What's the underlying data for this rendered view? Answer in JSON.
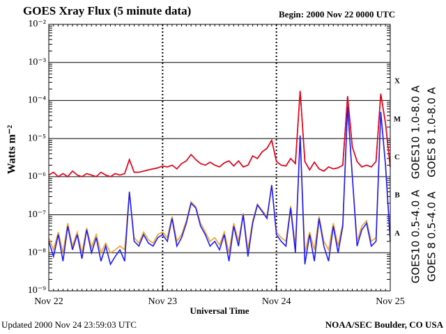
{
  "chart_data": {
    "type": "line",
    "title": "GOES Xray Flux (5 minute data)",
    "subtitle": "Begin:  2000 Nov 22  0000 UTC",
    "x_label": "Universal Time",
    "y_label": "Watts m⁻²",
    "footer_left": "Updated 2000 Nov 24 23:59:03 UTC",
    "footer_right": "NOAA/SEC Boulder, CO USA",
    "log_scale": true,
    "grid": true,
    "xlim": [
      0,
      72
    ],
    "xticks": [
      {
        "value": 0,
        "label": "Nov 22"
      },
      {
        "value": 24,
        "label": "Nov 23"
      },
      {
        "value": 48,
        "label": "Nov 24"
      },
      {
        "value": 72,
        "label": "Nov 25"
      }
    ],
    "ylim": [
      1e-09,
      0.01
    ],
    "yticks": [
      {
        "value": 1e-09,
        "label": "10⁻⁹"
      },
      {
        "value": 1e-08,
        "label": "10⁻⁸"
      },
      {
        "value": 1e-07,
        "label": "10⁻⁷"
      },
      {
        "value": 1e-06,
        "label": "10⁻⁶"
      },
      {
        "value": 1e-05,
        "label": "10⁻⁵"
      },
      {
        "value": 0.0001,
        "label": "10⁻⁴"
      },
      {
        "value": 0.001,
        "label": "10⁻³"
      },
      {
        "value": 0.01,
        "label": "10⁻²"
      }
    ],
    "flare_classes": [
      {
        "label": "A",
        "value": 1e-08
      },
      {
        "label": "B",
        "value": 1e-07
      },
      {
        "label": "C",
        "value": 1e-06
      },
      {
        "label": "M",
        "value": 1e-05
      },
      {
        "label": "X",
        "value": 0.0001
      }
    ],
    "x": [
      0,
      1,
      2,
      3,
      4,
      5,
      6,
      7,
      8,
      9,
      10,
      11,
      12,
      13,
      14,
      15,
      16,
      17,
      18,
      19,
      20,
      21,
      22,
      23,
      24,
      25,
      26,
      27,
      28,
      29,
      30,
      31,
      32,
      33,
      34,
      35,
      36,
      37,
      38,
      39,
      40,
      41,
      42,
      43,
      44,
      45,
      46,
      47,
      48,
      49,
      50,
      51,
      52,
      53,
      54,
      55,
      56,
      57,
      58,
      59,
      60,
      61,
      62,
      63,
      64,
      65,
      66,
      67,
      68,
      69,
      70,
      71,
      72
    ],
    "series": [
      {
        "name": "GOES10 1.0-8.0 A",
        "color": "#7f2fbf",
        "values": [
          1.1e-06,
          1.3e-06,
          1e-06,
          1.2e-06,
          1e-06,
          1.4e-06,
          1.1e-06,
          1e-06,
          1.2e-06,
          1.1e-06,
          1e-06,
          1.3e-06,
          1.1e-06,
          1e-06,
          1.2e-06,
          1.1e-06,
          1.2e-06,
          2.8e-06,
          1.3e-06,
          1.3e-06,
          1.4e-06,
          1.5e-06,
          1.6e-06,
          1.7e-06,
          1.9e-06,
          1.8e-06,
          2e-06,
          1.6e-06,
          2.2e-06,
          2.6e-06,
          3.8e-06,
          2.8e-06,
          2.2e-06,
          2e-06,
          2.4e-06,
          2e-06,
          1.8e-06,
          2.3e-06,
          2.6e-06,
          1.9e-06,
          2.6e-06,
          1.8e-06,
          2e-06,
          3.5e-06,
          3e-06,
          4.5e-06,
          5.5e-06,
          9e-06,
          2.5e-06,
          2e-06,
          1.9e-06,
          3e-06,
          2.2e-06,
          0.00018,
          2.5e-06,
          1.5e-06,
          2.4e-06,
          1.6e-06,
          1.4e-06,
          1.8e-06,
          1.6e-06,
          1.7e-06,
          2e-06,
          0.00013,
          6e-06,
          2.5e-06,
          1.8e-06,
          2e-06,
          1.8e-06,
          2.5e-06,
          0.00015,
          2.5e-05,
          1.8e-06
        ]
      },
      {
        "name": "GOES 8 1.0-8.0 A",
        "color": "#e8000b",
        "values": [
          1.1e-06,
          1.3e-06,
          1e-06,
          1.2e-06,
          1e-06,
          1.4e-06,
          1.1e-06,
          1e-06,
          1.2e-06,
          1.1e-06,
          1e-06,
          1.3e-06,
          1.1e-06,
          1e-06,
          1.2e-06,
          1.1e-06,
          1.2e-06,
          2.8e-06,
          1.3e-06,
          1.3e-06,
          1.4e-06,
          1.5e-06,
          1.6e-06,
          1.7e-06,
          1.9e-06,
          1.8e-06,
          2e-06,
          1.6e-06,
          2.2e-06,
          2.6e-06,
          3.8e-06,
          2.8e-06,
          2.2e-06,
          2e-06,
          2.4e-06,
          2e-06,
          1.8e-06,
          2.3e-06,
          2.6e-06,
          1.9e-06,
          2.6e-06,
          1.8e-06,
          2e-06,
          3.5e-06,
          3e-06,
          4.5e-06,
          5.5e-06,
          9e-06,
          2.5e-06,
          2e-06,
          1.9e-06,
          3e-06,
          2.2e-06,
          0.00018,
          2.5e-06,
          1.5e-06,
          2.4e-06,
          1.6e-06,
          1.4e-06,
          1.8e-06,
          1.6e-06,
          1.7e-06,
          2e-06,
          0.00013,
          6e-06,
          2.5e-06,
          1.8e-06,
          2e-06,
          1.8e-06,
          2.5e-06,
          0.00015,
          2.5e-05,
          1.8e-06
        ]
      },
      {
        "name": "GOES10 0.5-4.0 A",
        "color": "#f0a020",
        "values": [
          2.5e-08,
          1.2e-08,
          3.5e-08,
          1e-08,
          6e-08,
          1.5e-08,
          3.5e-08,
          1e-08,
          4.5e-08,
          1.4e-08,
          3e-08,
          1e-08,
          1.8e-08,
          1e-08,
          1.2e-08,
          1.5e-08,
          1.2e-08,
          4e-07,
          2.5e-08,
          1.8e-08,
          3.5e-08,
          2.2e-08,
          1.8e-08,
          3e-08,
          3.5e-08,
          2.5e-08,
          9e-08,
          2e-08,
          3e-08,
          7e-08,
          2.2e-07,
          1.6e-07,
          6e-08,
          3.5e-08,
          2e-08,
          2.5e-08,
          1.6e-08,
          3.5e-08,
          1e-08,
          6e-08,
          2e-08,
          1.1e-07,
          1.2e-08,
          7e-08,
          1.9e-07,
          1.3e-07,
          9e-08,
          6e-07,
          3.5e-08,
          2.5e-08,
          2e-08,
          1.7e-07,
          1.5e-08,
          1.2e-05,
          1e-08,
          3.5e-08,
          1.2e-08,
          9e-08,
          2e-08,
          1.2e-08,
          6e-08,
          1.5e-08,
          6e-08,
          7e-05,
          1e-06,
          2e-08,
          5e-08,
          7e-08,
          2e-08,
          2.5e-08,
          5e-05,
          2e-06,
          2.5e-08
        ]
      },
      {
        "name": "GOES 8 0.5-4.0 A",
        "color": "#1a1aff",
        "values": [
          2e-08,
          8e-09,
          3e-08,
          6e-09,
          5e-08,
          1.2e-08,
          3e-08,
          7e-09,
          4e-08,
          1e-08,
          2.5e-08,
          6e-09,
          1.5e-08,
          5e-09,
          8e-09,
          1.2e-08,
          6e-09,
          4e-07,
          2e-08,
          1.5e-08,
          3e-08,
          1.8e-08,
          1.5e-08,
          2.5e-08,
          3e-08,
          2e-08,
          8e-08,
          1.5e-08,
          2.5e-08,
          6e-08,
          2e-07,
          1.5e-07,
          5e-08,
          3e-08,
          1.5e-08,
          2e-08,
          1.2e-08,
          3e-08,
          6e-09,
          5e-08,
          1.5e-08,
          1e-07,
          8e-09,
          6e-08,
          1.8e-07,
          1.2e-07,
          8e-08,
          6e-07,
          3e-08,
          2e-08,
          1.5e-08,
          1.5e-07,
          1e-08,
          1.2e-05,
          5e-09,
          3e-08,
          6e-09,
          8e-08,
          1.5e-08,
          6e-09,
          5e-08,
          1e-08,
          5e-08,
          7e-05,
          1e-06,
          1.5e-08,
          4e-08,
          6e-08,
          1.5e-08,
          2e-08,
          5e-05,
          2e-06,
          2e-08
        ]
      }
    ]
  }
}
